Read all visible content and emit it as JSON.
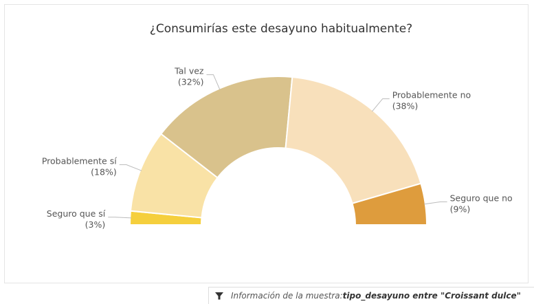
{
  "chart_data": {
    "type": "pie",
    "variant": "semicircle-donut",
    "title": "¿Consumirías este desayuno habitualmente?",
    "slices": [
      {
        "name": "Seguro que sí",
        "percent_label": "(3%)",
        "value": 3,
        "color": "#f5cf3d"
      },
      {
        "name": "Probablemente sí",
        "percent_label": "(18%)",
        "value": 18,
        "color": "#f9e2a6"
      },
      {
        "name": "Tal vez",
        "percent_label": "(32%)",
        "value": 32,
        "color": "#d9c28c"
      },
      {
        "name": "Probablemente no",
        "percent_label": "(38%)",
        "value": 38,
        "color": "#f8e0bb"
      },
      {
        "name": "Seguro que no",
        "percent_label": "(9%)",
        "value": 9,
        "color": "#de9c3d"
      }
    ]
  },
  "footer": {
    "icon": "filter-icon",
    "label": "Información de la muestra",
    "separator": " : ",
    "value": "tipo_desayuno entre \"Croissant dulce\""
  }
}
